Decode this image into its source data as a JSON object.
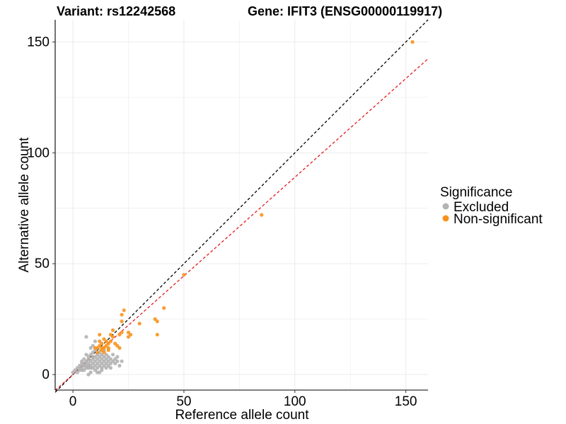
{
  "chart_data": {
    "type": "scatter",
    "title_left": "Variant: rs12242568",
    "title_right": "Gene: IFIT3 (ENSG00000119917)",
    "xlabel": "Reference allele count",
    "ylabel": "Alternative allele count",
    "xlim": [
      -8,
      160
    ],
    "ylim": [
      -7,
      160
    ],
    "x_ticks": [
      0,
      50,
      100,
      150
    ],
    "y_ticks": [
      0,
      50,
      100,
      150
    ],
    "grid": true,
    "legend": {
      "title": "Significance",
      "position": "right",
      "entries": [
        {
          "label": "Excluded",
          "color": "#b3b3b3"
        },
        {
          "label": "Non-significant",
          "color": "#f7941d"
        }
      ]
    },
    "reference_lines": [
      {
        "name": "identity",
        "slope": 1.0,
        "intercept": 0,
        "color": "#000000",
        "style": "dashed"
      },
      {
        "name": "fit",
        "slope": 0.89,
        "intercept": 0,
        "color": "#e41a1c",
        "style": "dashed"
      }
    ],
    "series": [
      {
        "name": "Excluded",
        "color": "#b3b3b3",
        "points": [
          [
            0,
            1
          ],
          [
            1,
            2
          ],
          [
            2,
            3
          ],
          [
            2,
            1
          ],
          [
            3,
            4
          ],
          [
            3,
            2
          ],
          [
            4,
            5
          ],
          [
            4,
            3
          ],
          [
            4,
            6
          ],
          [
            4,
            2
          ],
          [
            5,
            5
          ],
          [
            5,
            4
          ],
          [
            5,
            7
          ],
          [
            5,
            2
          ],
          [
            6,
            6
          ],
          [
            6,
            3
          ],
          [
            6,
            9
          ],
          [
            6,
            4
          ],
          [
            6,
            17
          ],
          [
            7,
            5
          ],
          [
            7,
            7
          ],
          [
            7,
            3
          ],
          [
            7,
            4
          ],
          [
            7,
            8
          ],
          [
            8,
            6
          ],
          [
            8,
            4
          ],
          [
            8,
            12
          ],
          [
            8,
            9
          ],
          [
            8,
            3
          ],
          [
            8,
            1
          ],
          [
            9,
            5
          ],
          [
            9,
            7
          ],
          [
            9,
            10
          ],
          [
            9,
            13
          ],
          [
            9,
            3
          ],
          [
            9,
            8
          ],
          [
            10,
            6
          ],
          [
            10,
            8
          ],
          [
            10,
            4
          ],
          [
            10,
            15
          ],
          [
            10,
            11
          ],
          [
            10,
            2
          ],
          [
            11,
            5
          ],
          [
            11,
            7
          ],
          [
            11,
            9
          ],
          [
            11,
            3
          ],
          [
            12,
            6
          ],
          [
            12,
            8
          ],
          [
            12,
            4
          ],
          [
            12,
            10
          ],
          [
            12,
            1
          ],
          [
            13,
            5
          ],
          [
            13,
            7
          ],
          [
            13,
            9
          ],
          [
            13,
            3
          ],
          [
            14,
            6
          ],
          [
            14,
            8
          ],
          [
            14,
            4
          ],
          [
            14,
            11
          ],
          [
            15,
            5
          ],
          [
            15,
            7
          ],
          [
            15,
            3
          ],
          [
            15,
            9
          ],
          [
            16,
            6
          ],
          [
            16,
            8
          ],
          [
            16,
            4
          ],
          [
            17,
            5
          ],
          [
            17,
            7
          ],
          [
            17,
            3
          ],
          [
            18,
            6
          ],
          [
            18,
            9
          ],
          [
            19,
            5
          ],
          [
            19,
            7
          ],
          [
            20,
            6
          ],
          [
            20,
            8
          ],
          [
            21,
            4
          ],
          [
            22,
            6
          ],
          [
            13,
            2
          ],
          [
            11,
            1
          ],
          [
            7,
            0
          ]
        ]
      },
      {
        "name": "Non-significant",
        "color": "#f7941d",
        "points": [
          [
            153,
            150
          ],
          [
            85,
            72
          ],
          [
            50,
            45
          ],
          [
            41,
            30
          ],
          [
            38,
            24
          ],
          [
            37,
            25
          ],
          [
            38,
            18
          ],
          [
            30,
            23
          ],
          [
            26,
            18
          ],
          [
            25,
            19
          ],
          [
            25,
            17
          ],
          [
            23,
            29
          ],
          [
            22,
            27
          ],
          [
            22,
            24
          ],
          [
            22,
            19
          ],
          [
            21,
            18
          ],
          [
            18,
            20
          ],
          [
            18,
            17
          ],
          [
            17,
            18
          ],
          [
            17,
            15
          ],
          [
            16,
            14
          ],
          [
            16,
            11
          ],
          [
            15,
            15
          ],
          [
            15,
            13
          ],
          [
            14,
            16
          ],
          [
            14,
            12
          ],
          [
            14,
            10
          ],
          [
            13,
            14
          ],
          [
            13,
            12
          ],
          [
            13,
            11
          ],
          [
            12,
            18
          ],
          [
            12,
            15
          ],
          [
            12,
            13
          ],
          [
            11,
            12
          ],
          [
            11,
            10
          ],
          [
            10,
            12
          ],
          [
            19,
            14
          ],
          [
            20,
            13
          ],
          [
            21,
            12
          ],
          [
            16,
            12
          ]
        ]
      }
    ]
  }
}
